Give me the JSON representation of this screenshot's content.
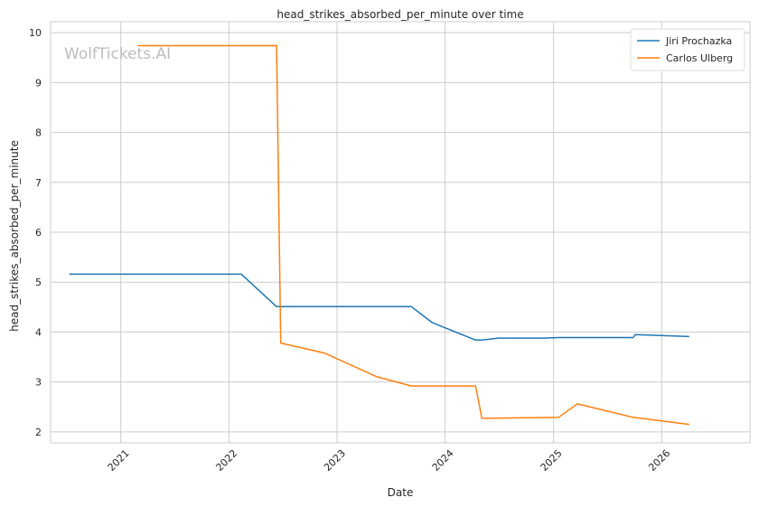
{
  "watermark": "WolfTickets.AI",
  "chart_data": {
    "type": "line",
    "title": "head_strikes_absorbed_per_minute over time",
    "xlabel": "Date",
    "ylabel": "head_strikes_absorbed_per_minute",
    "x_ticks": [
      "2021",
      "2022",
      "2023",
      "2024",
      "2025",
      "2026"
    ],
    "y_ticks": [
      2,
      3,
      4,
      5,
      6,
      7,
      8,
      9,
      10
    ],
    "ylim": [
      1.78,
      10.22
    ],
    "xlim": [
      "2020-05-09",
      "2026-10-26"
    ],
    "grid": true,
    "legend_position": "top-right",
    "series": [
      {
        "name": "Jiri Prochazka",
        "color": "#1f77b4",
        "points": [
          [
            "2020-07-11",
            5.16
          ],
          [
            "2022-02-12",
            5.16
          ],
          [
            "2022-06-11",
            4.51
          ],
          [
            "2023-09-09",
            4.51
          ],
          [
            "2023-11-18",
            4.19
          ],
          [
            "2024-04-13",
            3.84
          ],
          [
            "2024-05-04",
            3.84
          ],
          [
            "2024-06-29",
            3.88
          ],
          [
            "2024-11-30",
            3.88
          ],
          [
            "2025-01-18",
            3.89
          ],
          [
            "2025-09-27",
            3.89
          ],
          [
            "2025-10-04",
            3.95
          ],
          [
            "2026-04-04",
            3.91
          ]
        ]
      },
      {
        "name": "Carlos Ulberg",
        "color": "#ff7f0e",
        "points": [
          [
            "2021-02-27",
            9.74
          ],
          [
            "2022-06-11",
            9.74
          ],
          [
            "2022-06-25",
            3.78
          ],
          [
            "2022-11-19",
            3.58
          ],
          [
            "2023-05-13",
            3.11
          ],
          [
            "2023-09-09",
            2.92
          ],
          [
            "2024-04-13",
            2.92
          ],
          [
            "2024-05-04",
            2.27
          ],
          [
            "2025-01-18",
            2.29
          ],
          [
            "2025-03-22",
            2.56
          ],
          [
            "2025-09-27",
            2.29
          ],
          [
            "2026-04-04",
            2.15
          ]
        ]
      }
    ]
  }
}
